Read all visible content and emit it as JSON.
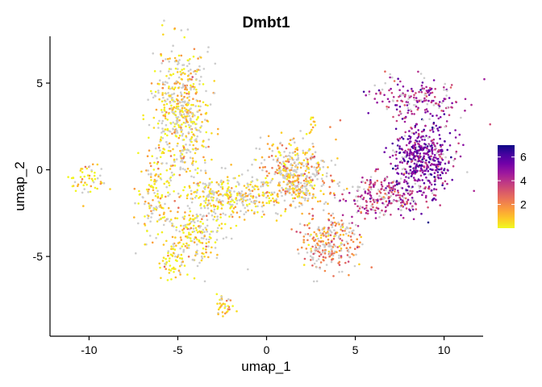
{
  "chart_data": {
    "type": "scatter",
    "title": "Dmbt1",
    "xlabel": "umap_1",
    "ylabel": "umap_2",
    "xlim": [
      -12.2,
      12.2
    ],
    "ylim": [
      -9.6,
      7.7
    ],
    "x_ticks": [
      -10,
      -5,
      0,
      5,
      10
    ],
    "x_tick_labels": [
      "-10",
      "-5",
      "0",
      "5",
      "10"
    ],
    "y_ticks": [
      5,
      0,
      -5
    ],
    "y_tick_labels": [
      "5",
      "0",
      "-5"
    ],
    "grid": false,
    "legend": {
      "placement": "right",
      "type": "colorbar",
      "range": [
        0,
        7
      ],
      "ticks": [
        6,
        4,
        2
      ],
      "tick_labels": [
        "6",
        "4",
        "2"
      ]
    },
    "colormap": [
      "#f0f921",
      "#fdca26",
      "#fb9f3a",
      "#ed7953",
      "#d8576b",
      "#bd3786",
      "#9c179e",
      "#7201a8",
      "#46039f",
      "#0d0887"
    ],
    "zero_color": "#cccccc",
    "clusters": [
      {
        "label": "left-small",
        "cx": -10.0,
        "cy": -0.6,
        "sx": 0.5,
        "sy": 0.5,
        "n": 55,
        "expr": 0.3,
        "zero": 0.25
      },
      {
        "label": "upper-left",
        "cx": -4.8,
        "cy": 3.4,
        "sx": 0.8,
        "sy": 1.8,
        "n": 560,
        "expr": 0.6,
        "zero": 0.45
      },
      {
        "label": "left-middle",
        "cx": -6.3,
        "cy": -1.6,
        "sx": 0.5,
        "sy": 1.3,
        "n": 140,
        "expr": 0.5,
        "zero": 0.35
      },
      {
        "label": "lower-left",
        "cx": -4.2,
        "cy": -4.0,
        "sx": 0.8,
        "sy": 0.8,
        "n": 160,
        "expr": 0.5,
        "zero": 0.4
      },
      {
        "label": "diagonal-tail",
        "cx": -5.4,
        "cy": -5.4,
        "sx": 0.4,
        "sy": 0.4,
        "n": 40,
        "expr": 0.4,
        "zero": 0.25
      },
      {
        "label": "bottom-bridge",
        "cx": -3.4,
        "cy": -2.5,
        "sx": 0.9,
        "sy": 1.4,
        "n": 130,
        "expr": 0.4,
        "zero": 0.4
      },
      {
        "label": "bottom-small",
        "cx": -2.4,
        "cy": -7.9,
        "sx": 0.3,
        "sy": 0.3,
        "n": 35,
        "expr": 1.0,
        "zero": 0.2
      },
      {
        "label": "middle-bridge",
        "cx": -1.8,
        "cy": -1.5,
        "sx": 1.2,
        "sy": 0.5,
        "n": 230,
        "expr": 0.5,
        "zero": 0.45
      },
      {
        "label": "center",
        "cx": 1.5,
        "cy": -0.3,
        "sx": 1.1,
        "sy": 1.0,
        "n": 470,
        "expr": 1.3,
        "zero": 0.4
      },
      {
        "label": "center-small",
        "cx": 2.6,
        "cy": 2.7,
        "sx": 0.1,
        "sy": 0.3,
        "n": 10,
        "expr": 1.3,
        "zero": 0.2
      },
      {
        "label": "bottom-center",
        "cx": 3.5,
        "cy": -4.2,
        "sx": 0.8,
        "sy": 0.8,
        "n": 280,
        "expr": 2.0,
        "zero": 0.4
      },
      {
        "label": "right-arm",
        "cx": 6.7,
        "cy": -1.5,
        "sx": 1.2,
        "sy": 0.6,
        "n": 260,
        "expr": 4.0,
        "zero": 0.25
      },
      {
        "label": "right-cluster",
        "cx": 8.8,
        "cy": 0.7,
        "sx": 0.8,
        "sy": 1.1,
        "n": 500,
        "expr": 5.2,
        "zero": 0.1
      },
      {
        "label": "upper-right",
        "cx": 8.5,
        "cy": 4.2,
        "sx": 1.3,
        "sy": 0.6,
        "n": 180,
        "expr": 4.5,
        "zero": 0.2
      }
    ]
  }
}
